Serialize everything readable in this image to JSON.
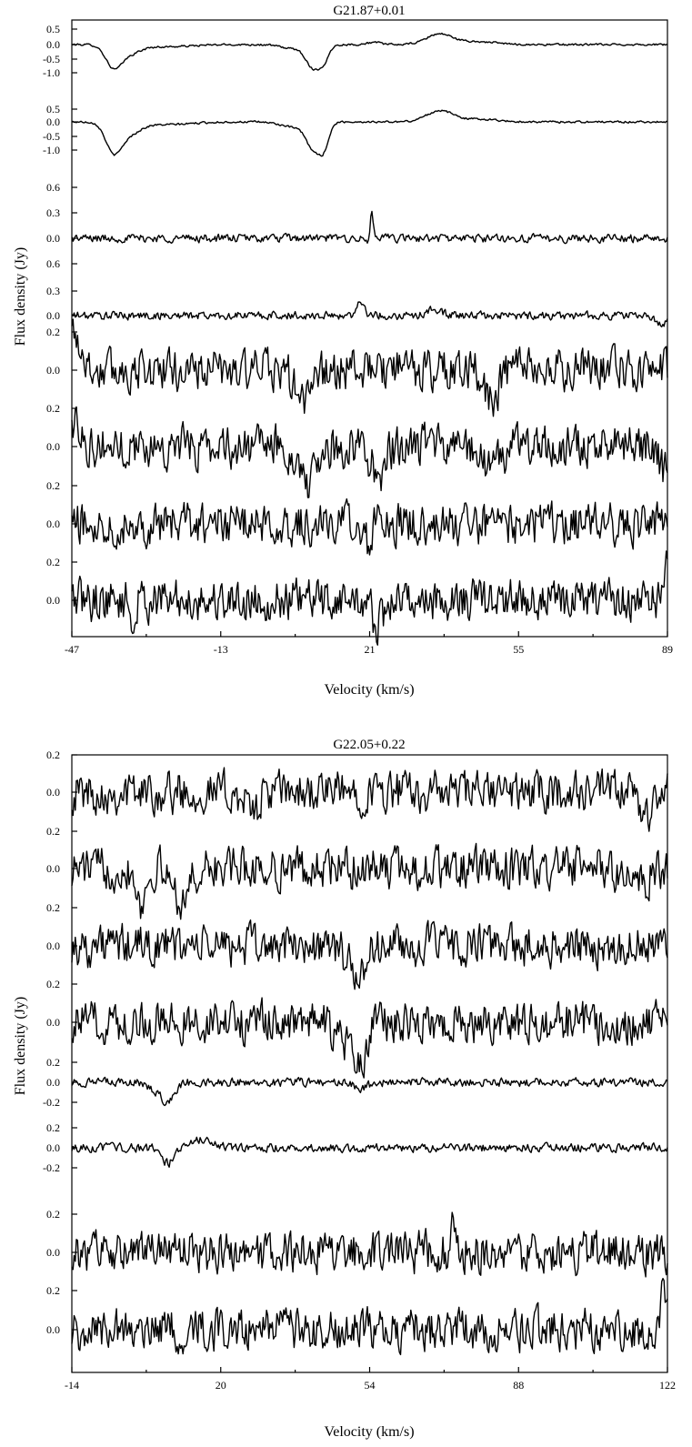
{
  "chart_data": [
    {
      "type": "line",
      "title": "G21.87+0.01",
      "xlabel": "Velocity (km/s)",
      "ylabel": "Flux density (Jy)",
      "x_range": [
        -47,
        89
      ],
      "xticks": [
        "-47",
        "-13",
        "21",
        "55",
        "89"
      ],
      "grid": false,
      "series": [
        {
          "yticks": [
            "0.5",
            "0.0",
            "-0.5",
            "-1.0"
          ],
          "noise": 0.02,
          "features": [
            {
              "v": -37.5,
              "amp": -0.75,
              "width": 1.8
            },
            {
              "v": -34,
              "amp": -0.3,
              "width": 2.5
            },
            {
              "v": -26,
              "amp": -0.08,
              "width": 6
            },
            {
              "v": 4,
              "amp": -0.15,
              "width": 3
            },
            {
              "v": 8,
              "amp": -0.75,
              "width": 1.5
            },
            {
              "v": 10.5,
              "amp": -0.55,
              "width": 1.2
            },
            {
              "v": 22,
              "amp": 0.08,
              "width": 1.5
            },
            {
              "v": 37,
              "amp": 0.38,
              "width": 3
            },
            {
              "v": 46,
              "amp": 0.1,
              "width": 4
            }
          ]
        },
        {
          "yticks": [
            "0.5",
            "0.0",
            "-0.5",
            "-1.0"
          ],
          "noise": 0.02,
          "features": [
            {
              "v": -37.5,
              "amp": -1.0,
              "width": 1.8
            },
            {
              "v": -34,
              "amp": -0.4,
              "width": 2.5
            },
            {
              "v": -26,
              "amp": -0.1,
              "width": 6
            },
            {
              "v": 4,
              "amp": -0.2,
              "width": 3
            },
            {
              "v": 8,
              "amp": -0.85,
              "width": 1.5
            },
            {
              "v": 10.5,
              "amp": -0.9,
              "width": 1.2
            },
            {
              "v": 37,
              "amp": 0.4,
              "width": 3
            },
            {
              "v": 46,
              "amp": 0.1,
              "width": 4
            }
          ]
        },
        {
          "yticks": [
            "0.6",
            "0.3",
            "0.0"
          ],
          "noise": 0.04,
          "features": [
            {
              "v": 21.5,
              "amp": 0.6,
              "width": 0.35
            },
            {
              "v": 21,
              "amp": -0.1,
              "width": 1
            }
          ]
        },
        {
          "yticks": [
            "0.6",
            "0.3",
            "0.0"
          ],
          "noise": 0.04,
          "features": [
            {
              "v": 19,
              "amp": 0.27,
              "width": 0.8
            },
            {
              "v": 36,
              "amp": 0.12,
              "width": 1.5
            },
            {
              "v": 88,
              "amp": -0.15,
              "width": 1.5
            }
          ]
        },
        {
          "yticks": [
            "0.2",
            "0.0"
          ],
          "noise": 0.06,
          "features": [
            {
              "v": -46.5,
              "amp": 0.2,
              "width": 1.5
            },
            {
              "v": 6,
              "amp": -0.15,
              "width": 2
            },
            {
              "v": 49,
              "amp": -0.15,
              "width": 1.5
            }
          ]
        },
        {
          "yticks": [
            "0.2",
            "0.0"
          ],
          "noise": 0.06,
          "features": [
            {
              "v": -46,
              "amp": 0.12,
              "width": 1.5
            },
            {
              "v": 7,
              "amp": -0.2,
              "width": 2
            },
            {
              "v": 23,
              "amp": -0.15,
              "width": 1.5
            },
            {
              "v": 49,
              "amp": -0.1,
              "width": 2
            },
            {
              "v": 88,
              "amp": -0.12,
              "width": 1
            }
          ]
        },
        {
          "yticks": [
            "0.2",
            "0.0"
          ],
          "noise": 0.06,
          "features": [
            {
              "v": 21,
              "amp": -0.18,
              "width": 0.5
            },
            {
              "v": 23,
              "amp": 0.16,
              "width": 0.5
            }
          ]
        },
        {
          "yticks": [
            "0.2",
            "0.0"
          ],
          "noise": 0.06,
          "features": [
            {
              "v": -33,
              "amp": -0.15,
              "width": 0.5
            },
            {
              "v": 23,
              "amp": -0.12,
              "width": 1.5
            },
            {
              "v": 89,
              "amp": 0.18,
              "width": 0.8
            }
          ]
        }
      ]
    },
    {
      "type": "line",
      "title": "G22.05+0.22",
      "xlabel": "Velocity (km/s)",
      "ylabel": "Flux density (Jy)",
      "x_range": [
        -14,
        122
      ],
      "xticks": [
        "-14",
        "20",
        "54",
        "88",
        "122"
      ],
      "grid": false,
      "series": [
        {
          "yticks": [
            "0.2",
            "0.0"
          ],
          "noise": 0.06,
          "features": [
            {
              "v": 27,
              "amp": -0.1,
              "width": 1.5
            },
            {
              "v": 117,
              "amp": -0.12,
              "width": 1.5
            }
          ]
        },
        {
          "yticks": [
            "0.2",
            "0.0"
          ],
          "noise": 0.06,
          "features": [
            {
              "v": 2,
              "amp": -0.18,
              "width": 1
            },
            {
              "v": 11,
              "amp": -0.15,
              "width": 2
            },
            {
              "v": 115,
              "amp": -0.1,
              "width": 2
            }
          ]
        },
        {
          "yticks": [
            "0.2",
            "0.0"
          ],
          "noise": 0.06,
          "features": [
            {
              "v": 51,
              "amp": -0.15,
              "width": 2
            }
          ]
        },
        {
          "yticks": [
            "0.2",
            "0.0"
          ],
          "noise": 0.06,
          "features": [
            {
              "v": 48,
              "amp": -0.1,
              "width": 2
            },
            {
              "v": 52,
              "amp": -0.2,
              "width": 1.5
            }
          ]
        },
        {
          "yticks": [
            "0.2",
            "0.0",
            "-0.2"
          ],
          "noise": 0.03,
          "features": [
            {
              "v": 8,
              "amp": -0.22,
              "width": 1.5
            },
            {
              "v": 5,
              "amp": -0.08,
              "width": 2
            },
            {
              "v": 52,
              "amp": -0.08,
              "width": 1.5
            }
          ]
        },
        {
          "yticks": [
            "0.2",
            "0.0",
            "-0.2"
          ],
          "noise": 0.03,
          "features": [
            {
              "v": 8,
              "amp": -0.2,
              "width": 1.5
            },
            {
              "v": 15,
              "amp": 0.1,
              "width": 3
            }
          ]
        },
        {
          "yticks": [
            "0.2",
            "0.0"
          ],
          "noise": 0.06,
          "features": [
            {
              "v": 73,
              "amp": 0.14,
              "width": 0.5
            },
            {
              "v": 122,
              "amp": -0.12,
              "width": 0.8
            }
          ]
        },
        {
          "yticks": [
            "0.2",
            "0.0"
          ],
          "noise": 0.06,
          "features": [
            {
              "v": 63,
              "amp": 0.14,
              "width": 0.5
            },
            {
              "v": 121,
              "amp": 0.2,
              "width": 0.6
            }
          ]
        }
      ]
    }
  ]
}
